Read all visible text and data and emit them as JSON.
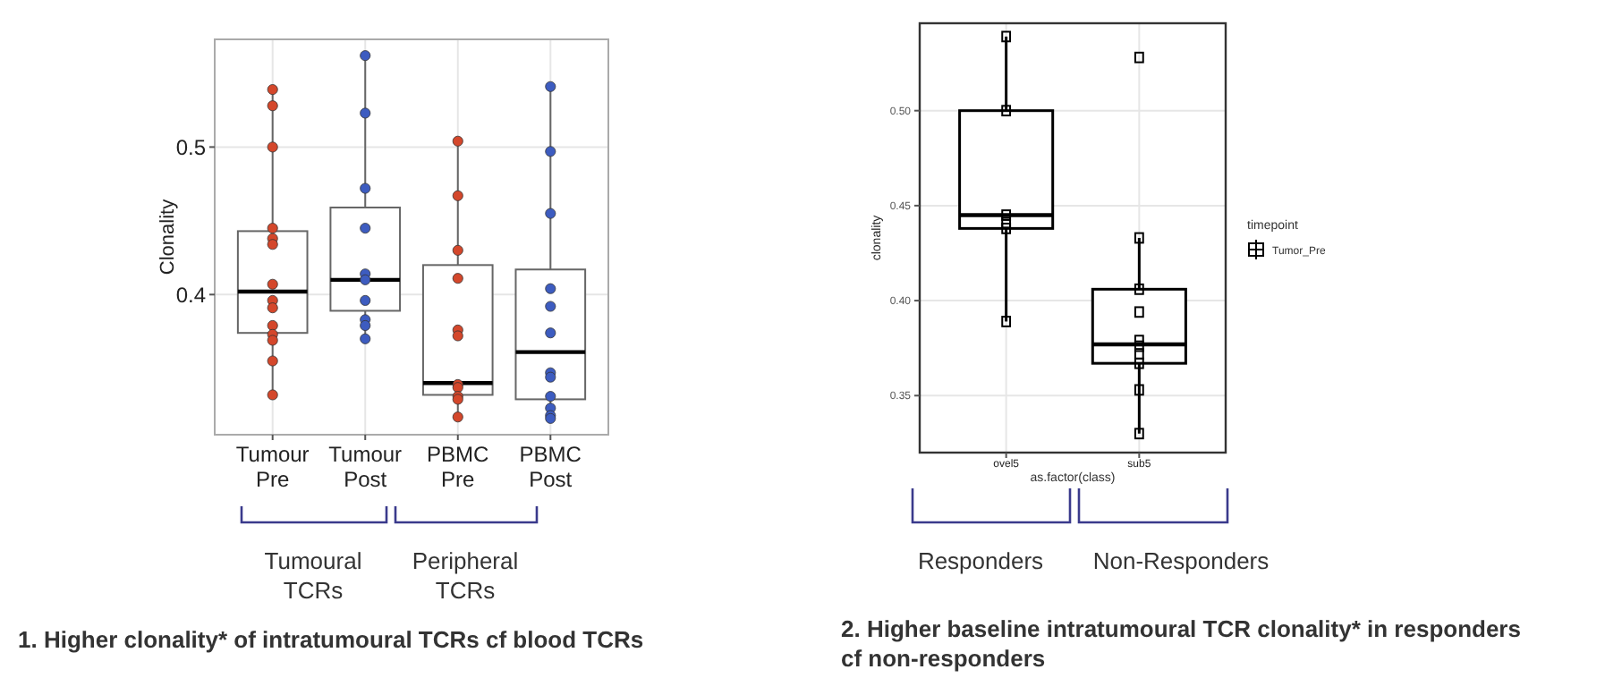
{
  "chart_data": [
    {
      "type": "box",
      "ylabel": "Clonality",
      "categories": [
        "Tumour Pre",
        "Tumour Post",
        "PBMC Pre",
        "PBMC Post"
      ],
      "boxes": [
        {
          "low": 0.332,
          "q1": 0.374,
          "median": 0.402,
          "q3": 0.443,
          "high": 0.539
        },
        {
          "low": 0.37,
          "q1": 0.389,
          "median": 0.41,
          "q3": 0.459,
          "high": 0.562
        },
        {
          "low": 0.316,
          "q1": 0.332,
          "median": 0.34,
          "q3": 0.42,
          "high": 0.504
        },
        {
          "low": 0.316,
          "q1": 0.329,
          "median": 0.361,
          "q3": 0.417,
          "high": 0.541
        }
      ],
      "series": [
        {
          "type": "scatter",
          "color": "#d4472b",
          "x": [
            "Tumour Pre",
            "Tumour Pre",
            "Tumour Pre",
            "Tumour Pre",
            "Tumour Pre",
            "Tumour Pre",
            "Tumour Pre",
            "Tumour Pre",
            "Tumour Pre",
            "Tumour Pre",
            "Tumour Pre",
            "Tumour Pre",
            "Tumour Pre",
            "Tumour Pre",
            "PBMC Pre",
            "PBMC Pre",
            "PBMC Pre",
            "PBMC Pre",
            "PBMC Pre",
            "PBMC Pre",
            "PBMC Pre",
            "PBMC Pre",
            "PBMC Pre",
            "PBMC Pre",
            "PBMC Pre"
          ],
          "values": [
            0.539,
            0.528,
            0.5,
            0.445,
            0.438,
            0.434,
            0.407,
            0.396,
            0.391,
            0.379,
            0.373,
            0.369,
            0.355,
            0.332,
            0.504,
            0.467,
            0.43,
            0.411,
            0.376,
            0.372,
            0.339,
            0.337,
            0.331,
            0.329,
            0.317
          ]
        },
        {
          "type": "scatter",
          "color": "#3d5cc0",
          "x": [
            "Tumour Post",
            "Tumour Post",
            "Tumour Post",
            "Tumour Post",
            "Tumour Post",
            "Tumour Post",
            "Tumour Post",
            "Tumour Post",
            "Tumour Post",
            "Tumour Post",
            "PBMC Post",
            "PBMC Post",
            "PBMC Post",
            "PBMC Post",
            "PBMC Post",
            "PBMC Post",
            "PBMC Post",
            "PBMC Post",
            "PBMC Post",
            "PBMC Post",
            "PBMC Post",
            "PBMC Post"
          ],
          "values": [
            0.562,
            0.523,
            0.472,
            0.445,
            0.414,
            0.41,
            0.396,
            0.383,
            0.379,
            0.37,
            0.541,
            0.497,
            0.455,
            0.404,
            0.392,
            0.374,
            0.347,
            0.344,
            0.331,
            0.323,
            0.318,
            0.316
          ]
        }
      ],
      "ylim": [
        0.305,
        0.573
      ],
      "yticks": [
        0.4,
        0.5
      ],
      "grid": true,
      "marker": "circle",
      "annotations": [
        "Tumoural TCRs",
        "Peripheral TCRs",
        "1. Higher clonality* of intratumoural TCRs cf blood TCRs"
      ]
    },
    {
      "type": "box",
      "ylabel": "clonality",
      "xlabel": "as.factor(class)",
      "categories": [
        "ovel5",
        "sub5"
      ],
      "legend_title": "timepoint",
      "legend": "right",
      "series": [
        {
          "type": "box",
          "name": "Tumor_Pre",
          "color": "#000000",
          "boxes": [
            {
              "low": 0.389,
              "q1": 0.438,
              "median": 0.445,
              "q3": 0.5,
              "high": 0.539
            },
            {
              "low": 0.33,
              "q1": 0.367,
              "median": 0.377,
              "q3": 0.406,
              "high": 0.433
            }
          ]
        },
        {
          "type": "scatter",
          "color": "#000000",
          "x": [
            "ovel5",
            "ovel5",
            "ovel5",
            "ovel5",
            "ovel5",
            "ovel5",
            "sub5",
            "sub5",
            "sub5",
            "sub5",
            "sub5",
            "sub5",
            "sub5",
            "sub5",
            "sub5",
            "sub5"
          ],
          "values": [
            0.539,
            0.5,
            0.445,
            0.441,
            0.438,
            0.389,
            0.528,
            0.433,
            0.406,
            0.394,
            0.379,
            0.376,
            0.372,
            0.367,
            0.353,
            0.33
          ]
        }
      ],
      "ylim": [
        0.32,
        0.546
      ],
      "yticks": [
        {
          "value": 0.35,
          "label": "0.35"
        },
        {
          "value": 0.4,
          "label": "0.40"
        },
        {
          "value": 0.45,
          "label": "0.45"
        },
        {
          "value": 0.5,
          "label": "0.50"
        }
      ],
      "grid": true,
      "marker": "square",
      "annotations": [
        "Responders",
        "Non-Responders",
        "2. Higher baseline intratumoural TCR clonality* in responders cf non-responders"
      ]
    }
  ]
}
